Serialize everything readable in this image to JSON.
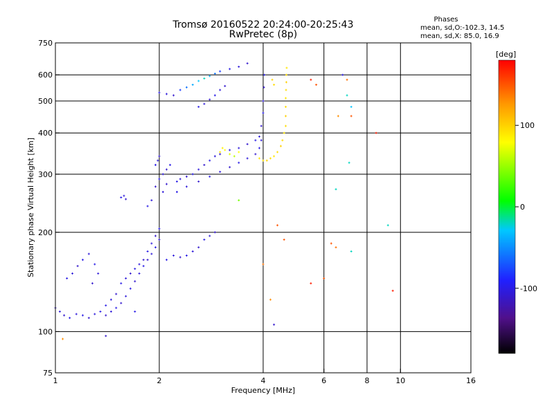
{
  "chart_data": {
    "type": "scatter",
    "title": "Tromsø 20160522 20:24:00-20:25:43",
    "subtitle": "RwPretec (8p)",
    "legend_text": {
      "heading": "Phases",
      "line1": "mean, sd,O:-102.3, 14.5",
      "line2": "mean, sd,X:  85.0, 16.9"
    },
    "xlabel": "Frequency [MHz]",
    "ylabel": "Stationary phase Virtual Height [km]",
    "x_scale": "log",
    "y_scale": "log",
    "xlim": [
      1,
      16
    ],
    "ylim": [
      75,
      750
    ],
    "x_ticks": [
      {
        "v": 1,
        "label": "1"
      },
      {
        "v": 2,
        "label": "2"
      },
      {
        "v": 4,
        "label": "4"
      },
      {
        "v": 6,
        "label": "6"
      },
      {
        "v": 8,
        "label": "8"
      },
      {
        "v": 10,
        "label": "10"
      },
      {
        "v": 16,
        "label": "16"
      }
    ],
    "y_ticks": [
      {
        "v": 75,
        "label": "75"
      },
      {
        "v": 100,
        "label": "100"
      },
      {
        "v": 200,
        "label": "200"
      },
      {
        "v": 300,
        "label": "300"
      },
      {
        "v": 400,
        "label": "400"
      },
      {
        "v": 500,
        "label": "500"
      },
      {
        "v": 600,
        "label": "600"
      },
      {
        "v": 750,
        "label": "750"
      }
    ],
    "grid_x": [
      2,
      4,
      6,
      8,
      10
    ],
    "grid_y": [
      100,
      200,
      300,
      400,
      500,
      600
    ],
    "colorbar": {
      "unit_label": "[deg]",
      "range": [
        -180,
        180
      ],
      "ticks": [
        {
          "v": 100,
          "label": "100"
        },
        {
          "v": 0,
          "label": "0"
        },
        {
          "v": -100,
          "label": "-100"
        }
      ]
    },
    "series": [
      {
        "points": [
          [
            1.0,
            118,
            -110
          ],
          [
            1.03,
            115,
            -105
          ],
          [
            1.06,
            112,
            -110
          ],
          [
            1.1,
            110,
            -100
          ],
          [
            1.15,
            113,
            -105
          ],
          [
            1.2,
            112,
            -100
          ],
          [
            1.25,
            110,
            -110
          ],
          [
            1.3,
            113,
            -105
          ],
          [
            1.35,
            115,
            -100
          ],
          [
            1.4,
            112,
            -110
          ],
          [
            1.45,
            115,
            -105
          ],
          [
            1.5,
            118,
            -100
          ],
          [
            1.55,
            122,
            -110
          ],
          [
            1.6,
            128,
            -105
          ],
          [
            1.65,
            135,
            -100
          ],
          [
            1.7,
            142,
            -110
          ],
          [
            1.75,
            150,
            -105
          ],
          [
            1.8,
            158,
            -100
          ],
          [
            1.85,
            165,
            -110
          ],
          [
            1.9,
            172,
            -105
          ],
          [
            1.95,
            180,
            -100
          ],
          [
            2.0,
            190,
            -110
          ]
        ]
      },
      {
        "points": [
          [
            1.08,
            145,
            -100
          ],
          [
            1.12,
            150,
            -105
          ],
          [
            1.16,
            158,
            -110
          ],
          [
            1.2,
            165,
            -100
          ],
          [
            1.25,
            172,
            -105
          ],
          [
            1.3,
            160,
            -100
          ],
          [
            1.33,
            150,
            -105
          ],
          [
            1.28,
            140,
            -110
          ]
        ]
      },
      {
        "points": [
          [
            1.4,
            120,
            -100
          ],
          [
            1.45,
            125,
            -105
          ],
          [
            1.5,
            130,
            -110
          ],
          [
            1.55,
            140,
            -100
          ],
          [
            1.6,
            145,
            -105
          ],
          [
            1.65,
            150,
            -110
          ],
          [
            1.7,
            155,
            -100
          ],
          [
            1.75,
            160,
            -105
          ],
          [
            1.8,
            165,
            -110
          ],
          [
            1.85,
            175,
            -100
          ],
          [
            1.9,
            185,
            -105
          ],
          [
            1.95,
            195,
            -110
          ],
          [
            2.0,
            205,
            -100
          ]
        ]
      },
      {
        "points": [
          [
            1.55,
            255,
            -100
          ],
          [
            1.58,
            258,
            -105
          ],
          [
            1.6,
            252,
            -110
          ],
          [
            1.85,
            240,
            -100
          ],
          [
            1.9,
            250,
            -105
          ],
          [
            1.95,
            275,
            -110
          ],
          [
            2.0,
            290,
            -100
          ],
          [
            2.05,
            300,
            -105
          ],
          [
            2.1,
            310,
            -110
          ],
          [
            2.15,
            320,
            -100
          ],
          [
            1.98,
            330,
            -105
          ],
          [
            2.0,
            340,
            -110
          ],
          [
            1.95,
            320,
            -100
          ],
          [
            2.05,
            265,
            -105
          ],
          [
            2.1,
            280,
            -110
          ]
        ]
      },
      {
        "points": [
          [
            2.25,
            285,
            -100
          ],
          [
            2.3,
            290,
            -105
          ],
          [
            2.4,
            295,
            -110
          ],
          [
            2.5,
            300,
            -100
          ],
          [
            2.6,
            310,
            -105
          ],
          [
            2.7,
            320,
            -110
          ],
          [
            2.8,
            330,
            -100
          ],
          [
            2.9,
            340,
            -105
          ],
          [
            3.0,
            345,
            -110
          ],
          [
            3.2,
            355,
            -100
          ],
          [
            3.4,
            360,
            -105
          ],
          [
            3.6,
            370,
            -110
          ],
          [
            3.8,
            380,
            -100
          ],
          [
            3.9,
            390,
            -105
          ],
          [
            3.95,
            420,
            -110
          ],
          [
            4.0,
            460,
            -100
          ],
          [
            4.0,
            500,
            -105
          ],
          [
            4.02,
            550,
            -110
          ],
          [
            4.03,
            600,
            -100
          ]
        ]
      },
      {
        "points": [
          [
            2.25,
            265,
            -100
          ],
          [
            2.4,
            275,
            -105
          ],
          [
            2.6,
            285,
            -110
          ],
          [
            2.8,
            295,
            -100
          ],
          [
            3.0,
            305,
            -105
          ],
          [
            3.2,
            315,
            -110
          ],
          [
            3.4,
            325,
            -100
          ],
          [
            3.6,
            335,
            -105
          ],
          [
            3.8,
            345,
            -110
          ],
          [
            3.9,
            360,
            -100
          ],
          [
            3.95,
            380,
            -105
          ]
        ]
      },
      {
        "points": [
          [
            3.0,
            350,
            90
          ],
          [
            3.05,
            360,
            85
          ],
          [
            3.1,
            355,
            80
          ],
          [
            3.2,
            345,
            70
          ],
          [
            3.3,
            340,
            60
          ],
          [
            3.4,
            350,
            80
          ]
        ]
      },
      {
        "points": [
          [
            3.9,
            335,
            90
          ],
          [
            4.0,
            330,
            95
          ],
          [
            4.1,
            330,
            100
          ],
          [
            4.2,
            335,
            95
          ],
          [
            4.3,
            340,
            90
          ],
          [
            4.4,
            350,
            95
          ],
          [
            4.5,
            365,
            100
          ],
          [
            4.55,
            380,
            95
          ],
          [
            4.6,
            400,
            90
          ],
          [
            4.65,
            420,
            95
          ],
          [
            4.65,
            450,
            100
          ],
          [
            4.65,
            480,
            95
          ],
          [
            4.65,
            510,
            90
          ],
          [
            4.66,
            540,
            95
          ],
          [
            4.67,
            570,
            100
          ],
          [
            4.67,
            600,
            95
          ],
          [
            4.68,
            630,
            90
          ],
          [
            4.3,
            560,
            95
          ],
          [
            4.25,
            580,
            100
          ]
        ]
      },
      {
        "points": [
          [
            2.0,
            530,
            -100
          ],
          [
            2.1,
            525,
            -105
          ],
          [
            2.2,
            520,
            -110
          ],
          [
            2.3,
            540,
            -80
          ],
          [
            2.4,
            550,
            -60
          ],
          [
            2.5,
            560,
            -40
          ],
          [
            2.6,
            575,
            -30
          ],
          [
            2.7,
            585,
            -20
          ],
          [
            2.8,
            595,
            -40
          ],
          [
            2.9,
            605,
            -60
          ],
          [
            3.0,
            615,
            -80
          ],
          [
            3.2,
            625,
            -100
          ],
          [
            3.4,
            635,
            -105
          ],
          [
            3.6,
            650,
            -110
          ]
        ]
      },
      {
        "points": [
          [
            2.6,
            480,
            -100
          ],
          [
            2.7,
            490,
            -105
          ],
          [
            2.8,
            505,
            -110
          ],
          [
            2.9,
            520,
            -100
          ],
          [
            3.0,
            540,
            -105
          ],
          [
            3.1,
            555,
            -110
          ]
        ]
      },
      {
        "points": [
          [
            1.05,
            95,
            130
          ],
          [
            1.4,
            97,
            -110
          ],
          [
            1.7,
            115,
            -100
          ],
          [
            2.1,
            165,
            -100
          ],
          [
            2.2,
            170,
            -105
          ],
          [
            2.3,
            168,
            -110
          ],
          [
            2.4,
            170,
            -100
          ],
          [
            2.5,
            175,
            -105
          ],
          [
            2.6,
            180,
            -110
          ],
          [
            2.7,
            190,
            -100
          ],
          [
            2.8,
            195,
            -105
          ],
          [
            2.9,
            200,
            -110
          ]
        ]
      },
      {
        "points": [
          [
            3.4,
            250,
            40
          ],
          [
            4.0,
            160,
            140
          ],
          [
            4.2,
            125,
            130
          ],
          [
            4.3,
            105,
            -110
          ],
          [
            4.4,
            210,
            150
          ],
          [
            4.6,
            190,
            150
          ],
          [
            5.5,
            580,
            170
          ],
          [
            5.7,
            560,
            150
          ],
          [
            6.3,
            185,
            150
          ],
          [
            6.5,
            180,
            140
          ],
          [
            6.5,
            270,
            -20
          ],
          [
            6.6,
            450,
            130
          ],
          [
            7.0,
            520,
            -20
          ],
          [
            7.1,
            325,
            -20
          ],
          [
            7.2,
            450,
            150
          ],
          [
            7.2,
            480,
            -30
          ],
          [
            8.5,
            400,
            170
          ],
          [
            9.2,
            210,
            -20
          ],
          [
            9.5,
            133,
            170
          ],
          [
            7.2,
            175,
            -20
          ],
          [
            7.0,
            580,
            140
          ],
          [
            6.8,
            600,
            -100
          ],
          [
            5.5,
            140,
            170
          ],
          [
            6.0,
            145,
            150
          ]
        ]
      }
    ]
  }
}
